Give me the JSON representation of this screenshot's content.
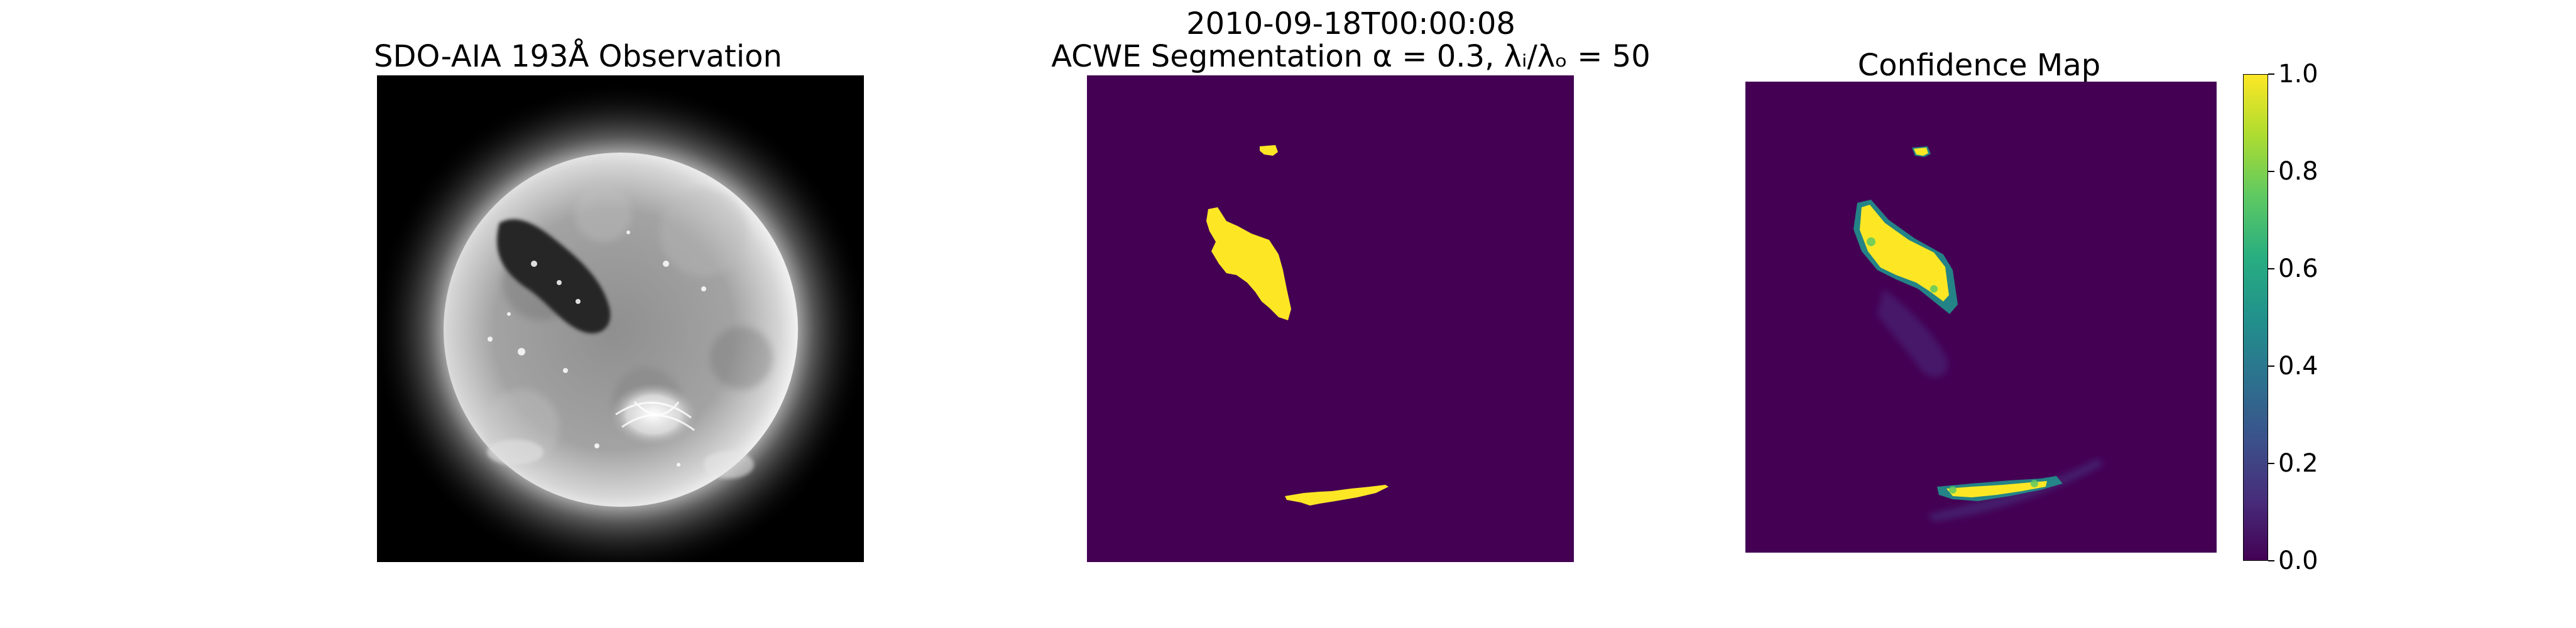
{
  "figure": {
    "suptitle": "2010-09-18T00:00:08"
  },
  "panels": [
    {
      "title": "SDO-AIA 193Å Observation"
    },
    {
      "title": "ACWE Segmentation α = 0.3, λᵢ/λₒ = 50"
    },
    {
      "title": "Confidence Map"
    }
  ],
  "colorbar": {
    "colormap": "viridis",
    "ticks": [
      "0.0",
      "0.2",
      "0.4",
      "0.6",
      "0.8",
      "1.0"
    ],
    "range": [
      0.0,
      1.0
    ]
  },
  "colors": {
    "viridis_low": "#440154",
    "viridis_high": "#fde725"
  }
}
